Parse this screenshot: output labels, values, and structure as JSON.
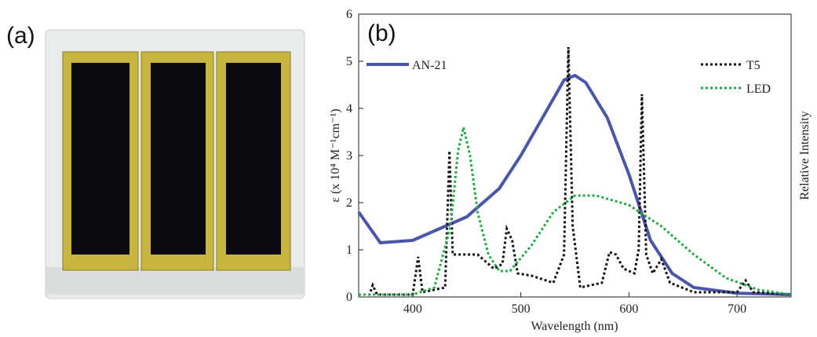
{
  "photo_label": "(a)",
  "chart_data": {
    "type": "line",
    "panel_label": "(b)",
    "xlabel": "Wavelength (nm)",
    "ylabel": "ε (x 10⁴ M⁻¹cm⁻¹)",
    "y2label": "Relative Intensity",
    "xlim": [
      350,
      750
    ],
    "xticks": [
      400,
      500,
      600,
      700
    ],
    "ylim": [
      0,
      6
    ],
    "yticks": [
      0,
      1,
      2,
      3,
      4,
      5,
      6
    ],
    "series": [
      {
        "name": "AN-21",
        "color": "#4b55aa",
        "style": "solid",
        "x": [
          350,
          370,
          400,
          450,
          480,
          500,
          520,
          540,
          550,
          560,
          580,
          600,
          620,
          640,
          660,
          700,
          750
        ],
        "values": [
          1.8,
          1.15,
          1.2,
          1.7,
          2.3,
          3.0,
          3.8,
          4.6,
          4.7,
          4.55,
          3.8,
          2.6,
          1.2,
          0.5,
          0.2,
          0.08,
          0.05
        ]
      },
      {
        "name": "T5",
        "color": "#111111",
        "style": "dotted",
        "x": [
          350,
          360,
          363,
          367,
          400,
          405,
          409,
          430,
          434,
          437,
          440,
          460,
          475,
          483,
          487,
          492,
          497,
          510,
          530,
          540,
          544,
          548,
          555,
          575,
          582,
          588,
          595,
          605,
          609,
          612,
          616,
          622,
          630,
          638,
          660,
          700,
          708,
          715,
          750
        ],
        "values": [
          0.05,
          0.05,
          0.25,
          0.05,
          0.05,
          0.85,
          0.1,
          0.2,
          3.1,
          0.9,
          0.9,
          0.9,
          0.6,
          0.7,
          1.45,
          1.2,
          0.5,
          0.45,
          0.3,
          0.9,
          5.3,
          1.5,
          0.2,
          0.3,
          0.95,
          0.9,
          0.6,
          0.5,
          1.0,
          4.3,
          0.9,
          0.5,
          0.8,
          0.3,
          0.1,
          0.1,
          0.35,
          0.1,
          0.05
        ]
      },
      {
        "name": "LED",
        "color": "#22aa44",
        "style": "dotted",
        "x": [
          350,
          400,
          420,
          435,
          442,
          447,
          453,
          460,
          470,
          480,
          490,
          510,
          530,
          550,
          570,
          600,
          630,
          660,
          690,
          720,
          750
        ],
        "values": [
          0.05,
          0.05,
          0.2,
          1.5,
          3.1,
          3.6,
          3.0,
          1.8,
          0.9,
          0.55,
          0.55,
          1.1,
          1.8,
          2.15,
          2.15,
          1.95,
          1.5,
          0.9,
          0.4,
          0.15,
          0.05
        ]
      }
    ]
  }
}
